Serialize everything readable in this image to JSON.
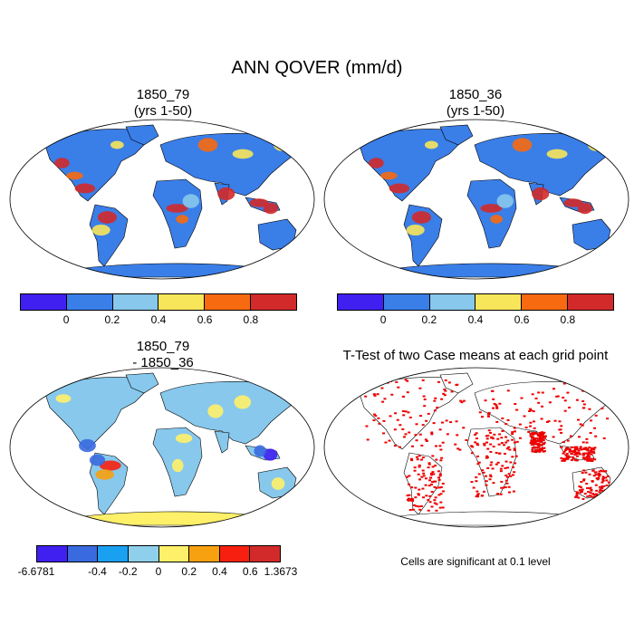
{
  "figure": {
    "title": "ANN QOVER (mm/d)"
  },
  "panels": {
    "top_left": {
      "title_line1": "1850_79",
      "title_line2": "(yrs 1-50)"
    },
    "top_right": {
      "title_line1": "1850_36",
      "title_line2": "(yrs 1-50)"
    },
    "bottom_left": {
      "title_line1": "1850_79",
      "title_line2": "- 1850_36"
    },
    "bottom_right": {
      "title": "T-Test of two Case means at each grid point"
    }
  },
  "colorbars": {
    "abs": {
      "colors": [
        "#4020f0",
        "#3a7ee8",
        "#87c8ec",
        "#f7e65a",
        "#f76a10",
        "#d22a2a"
      ],
      "labels": [
        "0",
        "0.2",
        "0.4",
        "0.6",
        "0.8"
      ]
    },
    "diff": {
      "colors": [
        "#4020f0",
        "#3a6ae0",
        "#1aa0f0",
        "#8ed0ec",
        "#fff06a",
        "#f7a010",
        "#f72010",
        "#d22a2a"
      ],
      "labels": [
        "-6.6781",
        "-0.4",
        "-0.2",
        "0",
        "0.2",
        "0.4",
        "0.6",
        "1.3673"
      ]
    }
  },
  "significance": {
    "note": "Cells are significant at 0.1 level",
    "color": "#ee0000"
  },
  "map_colors": {
    "ocean": "#ffffff",
    "land_abs_base": "#3a7ee8",
    "land_diff_base": "#87c8ec",
    "antarctica_diff": "#fff06a"
  }
}
